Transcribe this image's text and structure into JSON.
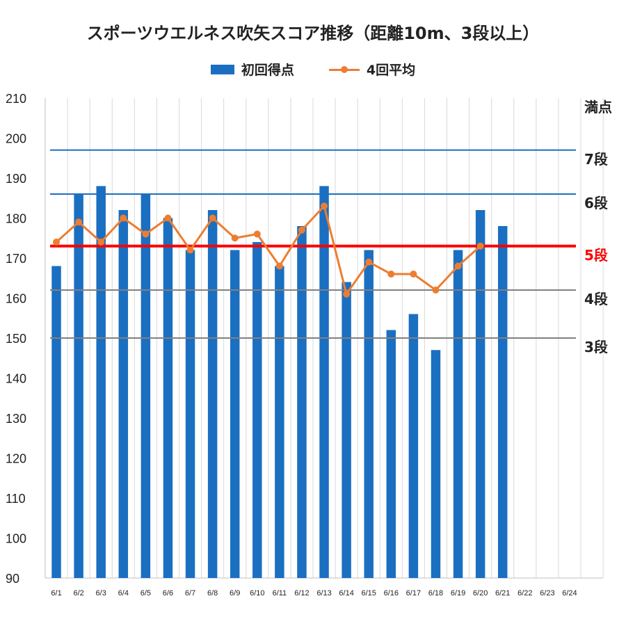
{
  "chart_data": {
    "type": "bar",
    "title": "スポーツウエルネス吹矢スコア推移（距離10m、3段以上）",
    "categories": [
      "6/1",
      "6/2",
      "6/3",
      "6/4",
      "6/5",
      "6/6",
      "6/7",
      "6/8",
      "6/9",
      "6/10",
      "6/11",
      "6/12",
      "6/13",
      "6/14",
      "6/15",
      "6/16",
      "6/17",
      "6/18",
      "6/19",
      "6/20",
      "6/21",
      "6/22",
      "6/23",
      "6/24"
    ],
    "ylim": [
      90,
      210
    ],
    "yticks": [
      90,
      100,
      110,
      120,
      130,
      140,
      150,
      160,
      170,
      180,
      190,
      200,
      210
    ],
    "grid": "vertical",
    "legend_position": "top",
    "series": [
      {
        "name": "初回得点",
        "type": "bar",
        "color": "#1b6fc1",
        "values": [
          168,
          186,
          188,
          182,
          186,
          180,
          172,
          182,
          172,
          174,
          168,
          178,
          188,
          164,
          172,
          152,
          156,
          147,
          172,
          182,
          178,
          null,
          null,
          null
        ]
      },
      {
        "name": "4回平均",
        "type": "line",
        "color": "#ed7d31",
        "values": [
          174,
          179,
          174,
          180,
          176,
          180,
          172,
          180,
          175,
          176,
          168,
          177,
          183,
          161,
          169,
          166,
          166,
          162,
          168,
          173,
          null,
          null,
          null,
          null
        ]
      }
    ],
    "reference_lines": [
      {
        "label": "満点",
        "value": 210,
        "color": null
      },
      {
        "label": "7段",
        "value": 197,
        "color": "#1b6fc1"
      },
      {
        "label": "6段",
        "value": 186,
        "color": "#1b6fc1"
      },
      {
        "label": "5段",
        "value": 173,
        "color": "#ff0000"
      },
      {
        "label": "4段",
        "value": 162,
        "color": "#808080"
      },
      {
        "label": "3段",
        "value": 150,
        "color": "#808080"
      }
    ]
  }
}
